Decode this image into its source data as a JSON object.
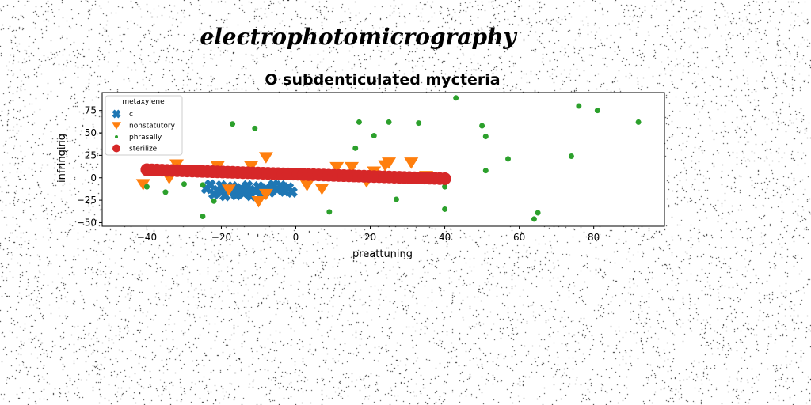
{
  "chart_data": {
    "type": "scatter",
    "suptitle": "electrophotomicrography",
    "title": "O subdenticulated mycteria",
    "xlabel": "preattuning",
    "ylabel": "infringing",
    "xlim": [
      -52,
      99
    ],
    "ylim": [
      -54,
      95
    ],
    "xticks": [
      -40,
      -20,
      0,
      20,
      40,
      60,
      80
    ],
    "yticks": [
      -50,
      -25,
      0,
      25,
      50,
      75
    ],
    "grid": false,
    "legend": {
      "title": "metaxylene",
      "placement": "upper-left"
    },
    "series": [
      {
        "name": "c",
        "marker": "X",
        "color": "#1f77b4",
        "points": [
          [
            -24,
            -12
          ],
          [
            -23,
            -8
          ],
          [
            -22,
            -18
          ],
          [
            -21,
            -14
          ],
          [
            -20,
            -9
          ],
          [
            -19,
            -20
          ],
          [
            -18,
            -15
          ],
          [
            -17,
            -10
          ],
          [
            -16,
            -19
          ],
          [
            -15,
            -13
          ],
          [
            -14,
            -17
          ],
          [
            -13,
            -9
          ],
          [
            -12,
            -20
          ],
          [
            -11,
            -14
          ],
          [
            -10,
            -10
          ],
          [
            -9,
            -18
          ],
          [
            -8,
            -12
          ],
          [
            -7,
            -16
          ],
          [
            -6,
            -8
          ],
          [
            -5,
            -13
          ],
          [
            -4,
            -9
          ],
          [
            -3,
            -15
          ],
          [
            -2,
            -11
          ],
          [
            -1,
            -16
          ],
          [
            -16,
            -12
          ],
          [
            -20,
            -16
          ],
          [
            -13,
            -16
          ]
        ]
      },
      {
        "name": "nonstatutory",
        "marker": "v",
        "color": "#ff7f0e",
        "points": [
          [
            -41,
            -7
          ],
          [
            -34,
            0
          ],
          [
            -32,
            15
          ],
          [
            -21,
            13
          ],
          [
            -18,
            -13
          ],
          [
            -12,
            13
          ],
          [
            -10,
            -26
          ],
          [
            -8,
            23
          ],
          [
            -8,
            -18
          ],
          [
            3,
            -8
          ],
          [
            7,
            -12
          ],
          [
            11,
            12
          ],
          [
            15,
            12
          ],
          [
            19,
            -4
          ],
          [
            24,
            14
          ],
          [
            25,
            17
          ],
          [
            31,
            17
          ],
          [
            21,
            7
          ],
          [
            35,
            2
          ]
        ]
      },
      {
        "name": "phrasally",
        "marker": "o",
        "color": "#2ca02c",
        "points": [
          [
            43,
            89
          ],
          [
            76,
            80
          ],
          [
            81,
            75
          ],
          [
            92,
            62
          ],
          [
            50,
            58
          ],
          [
            51,
            46
          ],
          [
            57,
            21
          ],
          [
            74,
            24
          ],
          [
            17,
            62
          ],
          [
            25,
            62
          ],
          [
            33,
            61
          ],
          [
            -17,
            60
          ],
          [
            -11,
            55
          ],
          [
            16,
            33
          ],
          [
            21,
            47
          ],
          [
            51,
            8
          ],
          [
            -40,
            -10
          ],
          [
            -35,
            -16
          ],
          [
            -30,
            -7
          ],
          [
            -25,
            -8
          ],
          [
            -25,
            -43
          ],
          [
            -22,
            -26
          ],
          [
            27,
            -24
          ],
          [
            40,
            -35
          ],
          [
            40,
            -10
          ],
          [
            9,
            -38
          ],
          [
            64,
            -46
          ],
          [
            65,
            -39
          ]
        ]
      },
      {
        "name": "sterilize",
        "marker": "o",
        "color": "#d62728",
        "line": {
          "x_from": -40,
          "x_to": 40,
          "y_from": 9,
          "y_to": -1,
          "count": 60
        }
      }
    ]
  }
}
